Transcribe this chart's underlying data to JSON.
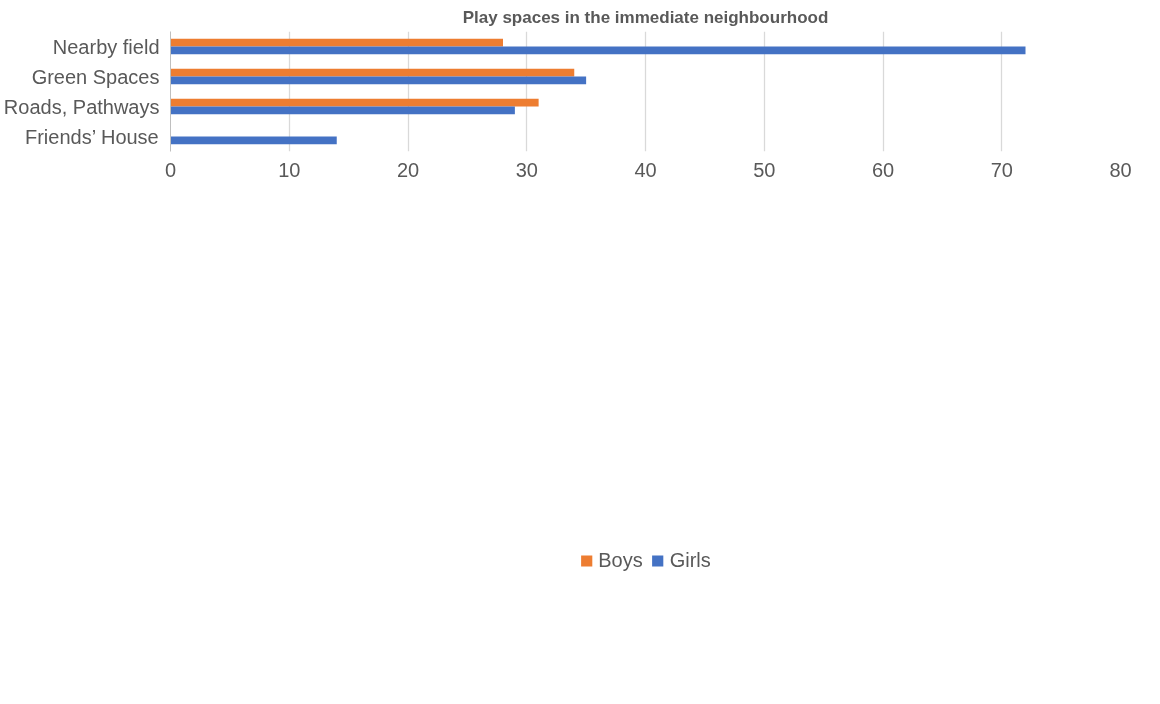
{
  "chart_data": {
    "type": "bar",
    "orientation": "horizontal",
    "title": "Play spaces in the immediate neighbourhood",
    "categories": [
      "Nearby field",
      "Green Spaces",
      "Roads, Pathways",
      "Friends’ House"
    ],
    "series": [
      {
        "name": "Boys",
        "color": "#ed7d31",
        "values": [
          28,
          34,
          31,
          0
        ]
      },
      {
        "name": "Girls",
        "color": "#4472c4",
        "values": [
          72,
          35,
          29,
          14
        ]
      }
    ],
    "xlim": [
      0,
      80
    ],
    "xticks": [
      0,
      10,
      20,
      30,
      40,
      50,
      60,
      70,
      80
    ],
    "grid": "x",
    "legend": "bottom"
  }
}
